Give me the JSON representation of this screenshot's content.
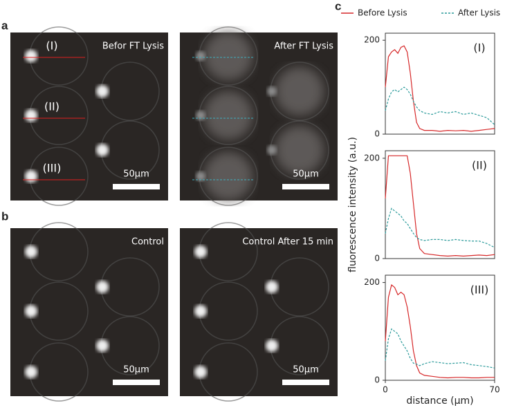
{
  "panels": {
    "a": "a",
    "b": "b",
    "c": "c"
  },
  "images": [
    {
      "label": "Befor FT Lysis",
      "scale_bar": "50µm",
      "markers": [
        "(I)",
        "(II)",
        "(III)"
      ]
    },
    {
      "label": "After FT Lysis",
      "scale_bar": "50µm"
    },
    {
      "label": "Control",
      "scale_bar": "50µm"
    },
    {
      "label": "Control After 15 min",
      "scale_bar": "50µm"
    }
  ],
  "chart_data": [
    {
      "type": "line",
      "annotation": "(I)",
      "x": [
        0,
        2,
        4,
        6,
        8,
        10,
        12,
        14,
        16,
        18,
        20,
        22,
        25,
        30,
        35,
        40,
        45,
        50,
        55,
        60,
        65,
        70
      ],
      "series": [
        {
          "name": "Before Lysis",
          "color": "#d62728",
          "dash": false,
          "values": [
            100,
            165,
            175,
            180,
            172,
            185,
            188,
            175,
            130,
            70,
            25,
            12,
            8,
            8,
            6,
            8,
            7,
            8,
            6,
            8,
            10,
            12
          ]
        },
        {
          "name": "After Lysis",
          "color": "#2a9a9a",
          "dash": true,
          "values": [
            50,
            75,
            90,
            95,
            90,
            95,
            100,
            95,
            85,
            70,
            58,
            50,
            45,
            42,
            48,
            45,
            48,
            42,
            45,
            40,
            35,
            20
          ]
        }
      ],
      "xlim": [
        0,
        70
      ],
      "ylim": [
        0,
        215
      ],
      "yticks": [
        0,
        200
      ]
    },
    {
      "type": "line",
      "annotation": "(II)",
      "ylabel": "fluorescence intensity (a.u.)",
      "x": [
        0,
        2,
        4,
        6,
        8,
        10,
        12,
        14,
        16,
        18,
        20,
        22,
        25,
        30,
        35,
        40,
        45,
        50,
        55,
        60,
        65,
        70
      ],
      "series": [
        {
          "color": "#d62728",
          "dash": false,
          "values": [
            120,
            205,
            205,
            205,
            205,
            205,
            205,
            205,
            170,
            110,
            50,
            20,
            10,
            8,
            6,
            5,
            6,
            5,
            6,
            7,
            6,
            8
          ]
        },
        {
          "color": "#2a9a9a",
          "dash": true,
          "values": [
            50,
            80,
            100,
            95,
            90,
            85,
            75,
            70,
            60,
            50,
            42,
            38,
            36,
            38,
            38,
            36,
            38,
            36,
            35,
            35,
            30,
            22
          ]
        }
      ],
      "xlim": [
        0,
        70
      ],
      "ylim": [
        0,
        215
      ],
      "yticks": [
        0,
        200
      ]
    },
    {
      "type": "line",
      "annotation": "(III)",
      "xlabel": "distance (µm)",
      "x": [
        0,
        2,
        4,
        6,
        8,
        10,
        12,
        14,
        16,
        18,
        20,
        22,
        25,
        30,
        35,
        40,
        45,
        50,
        55,
        60,
        65,
        70
      ],
      "series": [
        {
          "color": "#d62728",
          "dash": false,
          "values": [
            80,
            170,
            195,
            190,
            175,
            180,
            175,
            150,
            110,
            60,
            30,
            15,
            10,
            8,
            6,
            5,
            6,
            6,
            5,
            5,
            6,
            6
          ]
        },
        {
          "color": "#2a9a9a",
          "dash": true,
          "values": [
            40,
            85,
            105,
            100,
            95,
            80,
            70,
            60,
            45,
            35,
            33,
            30,
            34,
            38,
            36,
            34,
            35,
            36,
            32,
            30,
            28,
            25
          ]
        }
      ],
      "xlim": [
        0,
        70
      ],
      "ylim": [
        0,
        215
      ],
      "yticks": [
        0,
        200
      ],
      "xticks": [
        0,
        70
      ]
    }
  ]
}
